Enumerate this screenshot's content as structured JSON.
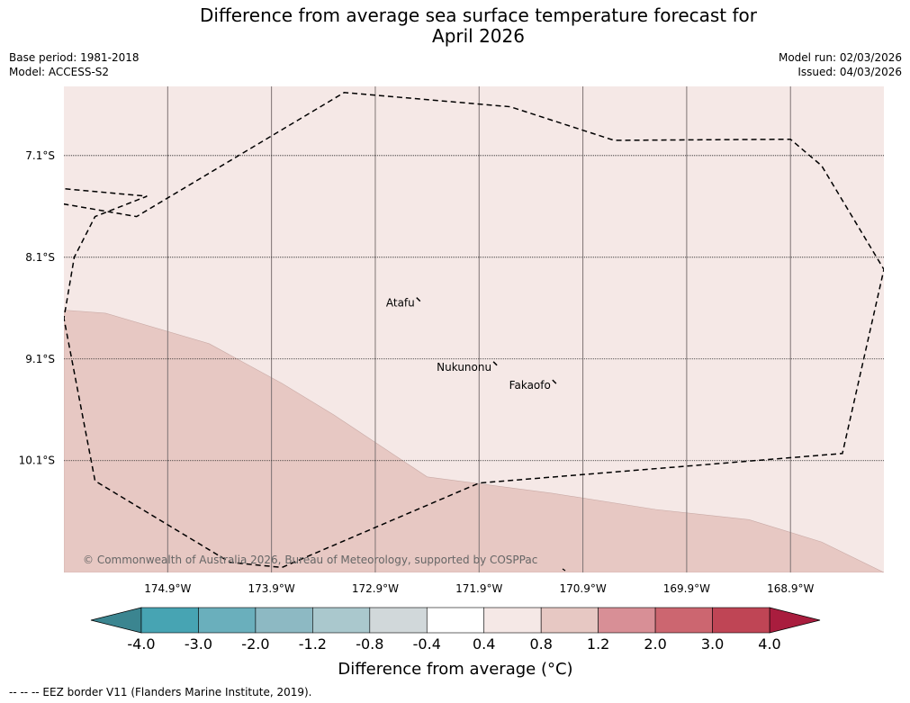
{
  "header": {
    "title": "Difference from average sea surface temperature forecast for\nApril 2026",
    "base_period": "Base period: 1981-2018",
    "model": "Model: ACCESS-S2",
    "model_run": "Model run: 02/03/2026",
    "issued": "Issued: 04/03/2026"
  },
  "map": {
    "copyright": "© Commonwealth of Australia 2026, Bureau of Meteorology, supported by COSPPac",
    "places": [
      {
        "name": "Atafu",
        "lon": -172.52,
        "lat": -8.55
      },
      {
        "name": "Nukunonu",
        "lon": -171.78,
        "lat": -9.18
      },
      {
        "name": "Fakaofo",
        "lon": -171.21,
        "lat": -9.36
      }
    ]
  },
  "chart_data": {
    "type": "heatmap",
    "title": "Difference from average sea surface temperature forecast for April 2026",
    "x_range": [
      -175.9,
      -168.0
    ],
    "y_range": [
      -11.2,
      -6.42
    ],
    "xticks": [
      -174.9,
      -173.9,
      -172.9,
      -171.9,
      -170.9,
      -169.9,
      -168.9
    ],
    "xtick_labels": [
      "174.9°W",
      "173.9°W",
      "172.9°W",
      "171.9°W",
      "170.9°W",
      "169.9°W",
      "168.9°W"
    ],
    "yticks": [
      -7.1,
      -8.1,
      -9.1,
      -10.1
    ],
    "ytick_labels": [
      "7.1°S",
      "8.1°S",
      "9.1°S",
      "10.1°S"
    ],
    "fields": [
      {
        "range": "0.4 to 0.8",
        "color": "#f5e8e6",
        "area": "background"
      },
      {
        "range": "0.8 to 1.2",
        "color": "#e7c8c3",
        "boundary": [
          [
            -175.9,
            -8.62
          ],
          [
            -175.5,
            -8.65
          ],
          [
            -174.5,
            -8.95
          ],
          [
            -173.8,
            -9.34
          ],
          [
            -173.3,
            -9.65
          ],
          [
            -172.4,
            -10.26
          ],
          [
            -171.2,
            -10.42
          ],
          [
            -170.2,
            -10.58
          ],
          [
            -169.3,
            -10.68
          ],
          [
            -168.6,
            -10.9
          ],
          [
            -168.0,
            -11.2
          ],
          [
            -175.9,
            -11.2
          ]
        ]
      }
    ],
    "eez_border": [
      [
        -177.7,
        -7.26
      ],
      [
        -175.2,
        -7.7
      ],
      [
        -173.2,
        -6.48
      ],
      [
        -171.6,
        -6.62
      ],
      [
        -170.6,
        -6.95
      ],
      [
        -168.9,
        -6.94
      ],
      [
        -168.6,
        -7.2
      ],
      [
        -168.0,
        -8.22
      ],
      [
        -168.4,
        -10.03
      ],
      [
        -171.9,
        -10.32
      ],
      [
        -173.8,
        -11.15
      ],
      [
        -174.3,
        -11.1
      ],
      [
        -175.6,
        -10.3
      ],
      [
        -175.9,
        -8.7
      ],
      [
        -175.8,
        -8.1
      ],
      [
        -175.6,
        -7.7
      ],
      [
        -175.1,
        -7.5
      ]
    ],
    "colorbar": {
      "label": "Difference from average (°C)",
      "bounds": [
        "-4.0",
        "-3.0",
        "-2.0",
        "-1.2",
        "-0.8",
        "-0.4",
        "0.4",
        "0.8",
        "1.2",
        "2.0",
        "3.0",
        "4.0"
      ],
      "colors": [
        "#47a4b3",
        "#6aafbc",
        "#8db9c3",
        "#aac8cd",
        "#d1d8da",
        "#ffffff",
        "#f5e8e6",
        "#e7c8c3",
        "#d88f96",
        "#cc6670",
        "#bf4555"
      ],
      "extend_low_color": "#3b8590",
      "extend_high_color": "#a91d3e"
    },
    "legend": "--  --  -- EEZ border V11 (Flanders Marine Institute, 2019)."
  }
}
